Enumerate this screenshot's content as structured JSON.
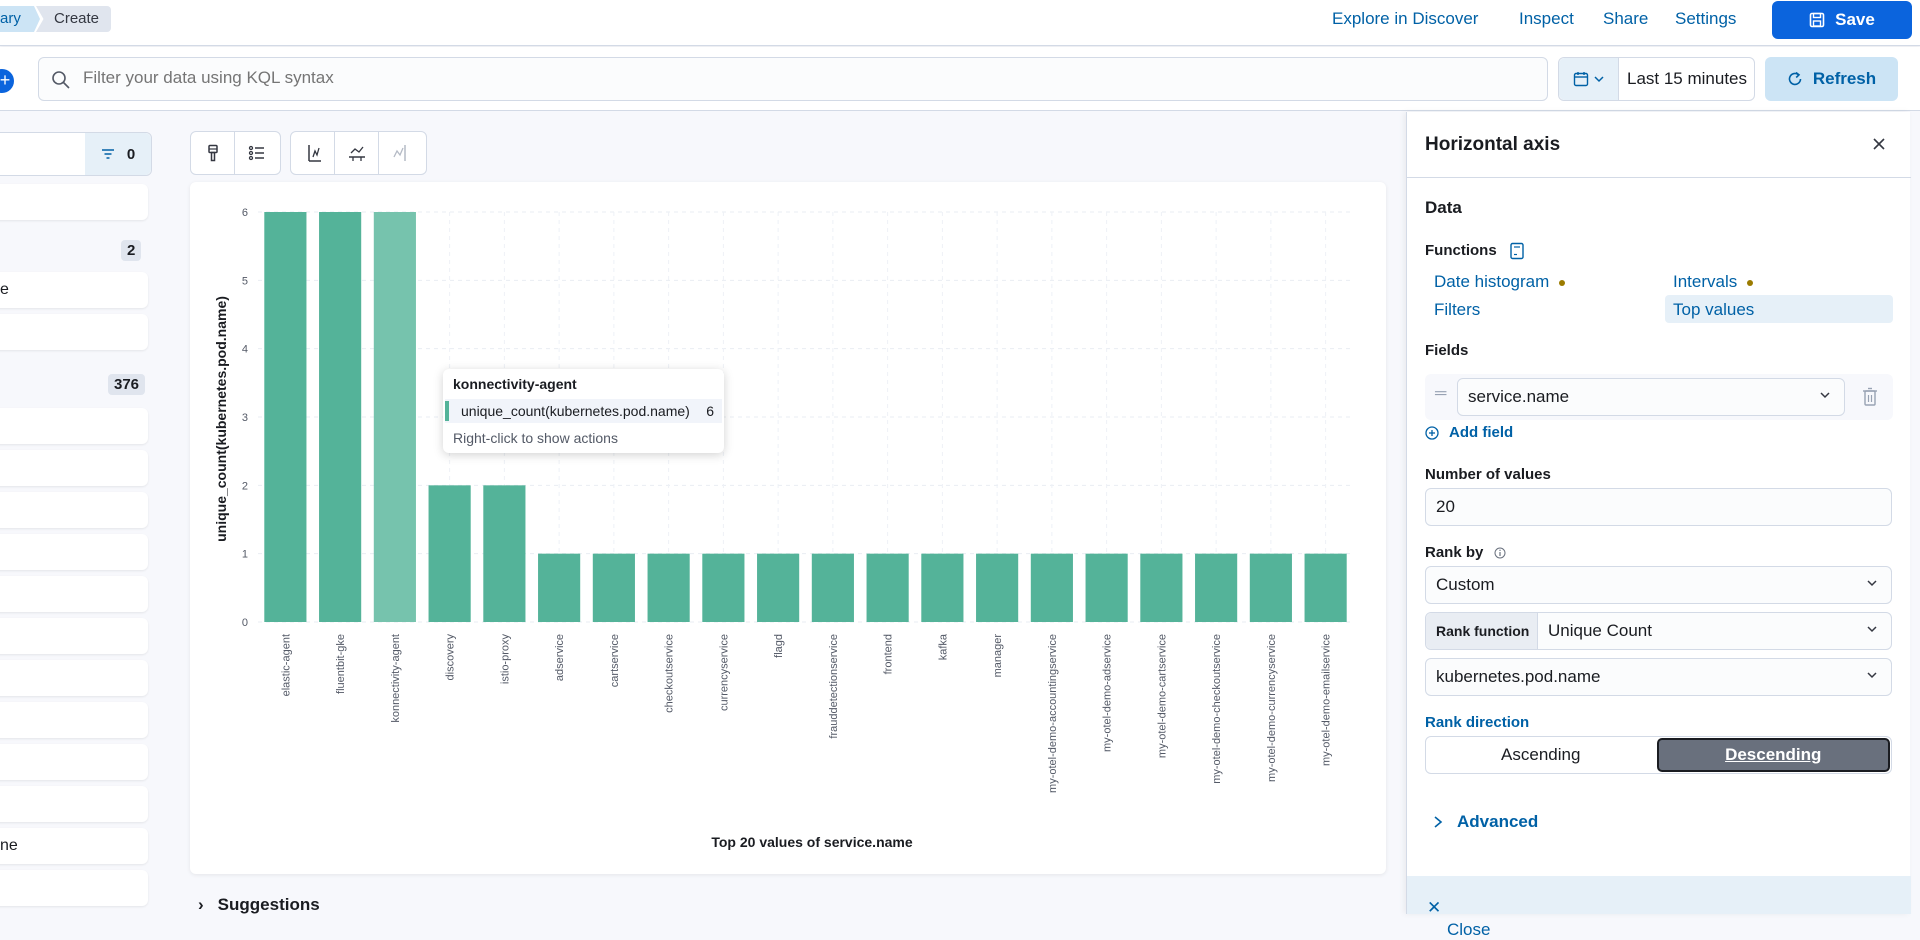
{
  "header": {
    "breadcrumbs": [
      "ary",
      "Create"
    ],
    "links": [
      "Explore in Discover",
      "Inspect",
      "Share",
      "Settings"
    ],
    "save_label": "Save"
  },
  "query": {
    "placeholder": "Filter your data using KQL syntax",
    "time_range": "Last 15 minutes",
    "refresh_label": "Refresh"
  },
  "field_list": {
    "filter_count": "0",
    "group_badges": [
      "2",
      "376"
    ],
    "partial_labels": [
      "e",
      "ne"
    ]
  },
  "chart_data": {
    "type": "bar",
    "xlabel": "Top 20 values of service.name",
    "ylabel": "unique_count(kubernetes.pod.name)",
    "ylim": [
      0,
      6
    ],
    "yticks": [
      0,
      1,
      2,
      3,
      4,
      5,
      6
    ],
    "categories": [
      "elastic-agent",
      "fluentbit-gke",
      "konnectivity-agent",
      "discovery",
      "istio-proxy",
      "adservice",
      "cartservice",
      "checkoutservice",
      "currencyservice",
      "flagd",
      "frauddetectionservice",
      "frontend",
      "kafka",
      "manager",
      "my-otel-demo-accountingservice",
      "my-otel-demo-adservice",
      "my-otel-demo-cartservice",
      "my-otel-demo-checkoutservice",
      "my-otel-demo-currencyservice",
      "my-otel-demo-emailservice"
    ],
    "values": [
      6,
      6,
      6,
      2,
      2,
      1,
      1,
      1,
      1,
      1,
      1,
      1,
      1,
      1,
      1,
      1,
      1,
      1,
      1,
      1
    ],
    "highlighted_index": 2,
    "bar_color": "#54b399",
    "highlight_color": "#76c3ad",
    "grid": true
  },
  "tooltip": {
    "title": "konnectivity-agent",
    "metric": "unique_count(kubernetes.pod.name)",
    "value": "6",
    "hint": "Right-click to show actions"
  },
  "suggestions_label": "Suggestions",
  "flyout": {
    "title": "Horizontal axis",
    "data_heading": "Data",
    "functions_label": "Functions",
    "functions": [
      "Date histogram",
      "Intervals",
      "Filters",
      "Top values"
    ],
    "selected_function": "Top values",
    "fields_label": "Fields",
    "field_value": "service.name",
    "add_field": "Add field",
    "num_values_label": "Number of values",
    "num_values": "20",
    "rank_by_label": "Rank by",
    "rank_by": "Custom",
    "rank_function_label": "Rank function",
    "rank_function": "Unique Count",
    "rank_field": "kubernetes.pod.name",
    "rank_direction_label": "Rank direction",
    "directions": [
      "Ascending",
      "Descending"
    ],
    "selected_direction": "Descending",
    "advanced": "Advanced",
    "close": "Close"
  },
  "colors": {
    "accent": "#0b64dd",
    "link": "#0061a6",
    "bar": "#54b399"
  }
}
